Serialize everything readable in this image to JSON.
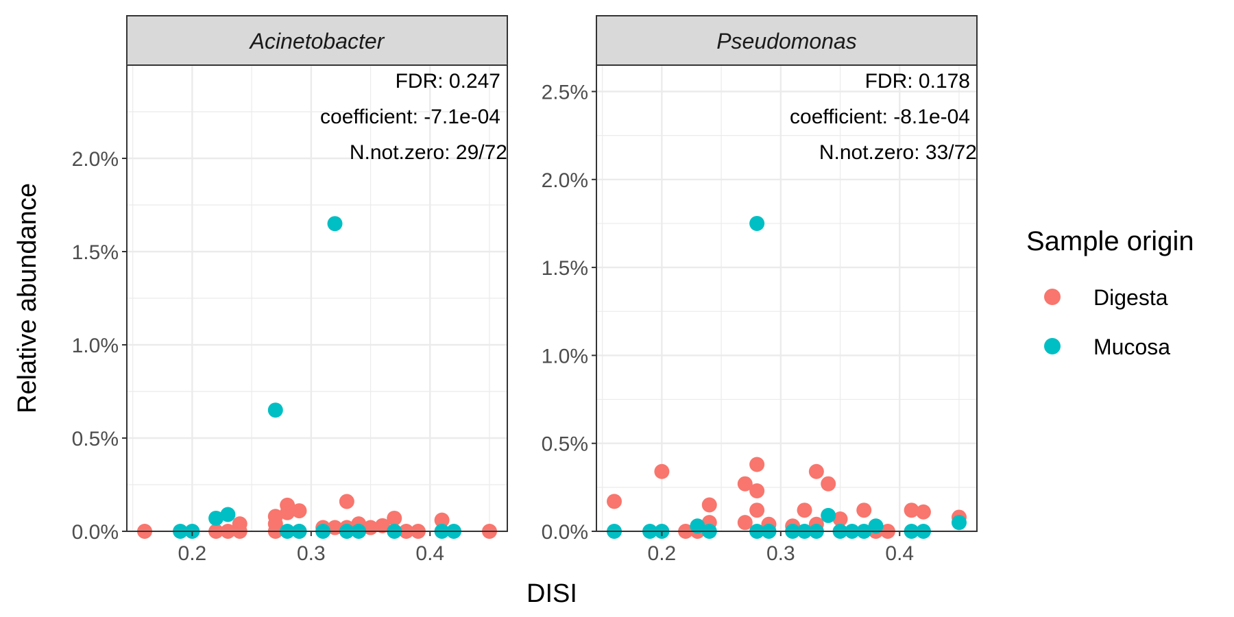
{
  "chart_data": {
    "type": "scatter",
    "xlabel": "DISI",
    "ylabel": "Relative abundance",
    "legend": {
      "title": "Sample origin",
      "position": "right",
      "entries": [
        {
          "name": "Digesta",
          "color": "#F8766D"
        },
        {
          "name": "Mucosa",
          "color": "#00BFC4"
        }
      ]
    },
    "grid": true,
    "x_ticks": [
      "0.2",
      "0.3",
      "0.4"
    ],
    "panels": [
      {
        "title": "Acinetobacter",
        "xlim": [
          0.145,
          0.465
        ],
        "ylim": [
          0,
          2.5
        ],
        "y_ticks": [
          "0.0%",
          "0.5%",
          "1.0%",
          "1.5%",
          "2.0%"
        ],
        "annotations": [
          "FDR: 0.247",
          "coefficient: -7.1e-04",
          "N.not.zero: 29/72"
        ],
        "series": [
          {
            "name": "Digesta",
            "points": [
              [
                0.16,
                0.0
              ],
              [
                0.22,
                0.0
              ],
              [
                0.23,
                0.0
              ],
              [
                0.24,
                0.04
              ],
              [
                0.24,
                0.0
              ],
              [
                0.27,
                0.08
              ],
              [
                0.27,
                0.04
              ],
              [
                0.27,
                0.0
              ],
              [
                0.28,
                0.14
              ],
              [
                0.28,
                0.1
              ],
              [
                0.29,
                0.11
              ],
              [
                0.29,
                0.0
              ],
              [
                0.31,
                0.02
              ],
              [
                0.32,
                0.02
              ],
              [
                0.33,
                0.16
              ],
              [
                0.33,
                0.02
              ],
              [
                0.34,
                0.04
              ],
              [
                0.35,
                0.02
              ],
              [
                0.36,
                0.03
              ],
              [
                0.37,
                0.07
              ],
              [
                0.38,
                0.0
              ],
              [
                0.39,
                0.0
              ],
              [
                0.41,
                0.06
              ],
              [
                0.45,
                0.0
              ]
            ]
          },
          {
            "name": "Mucosa",
            "points": [
              [
                0.19,
                0.0
              ],
              [
                0.2,
                0.0
              ],
              [
                0.22,
                0.07
              ],
              [
                0.23,
                0.09
              ],
              [
                0.27,
                0.65
              ],
              [
                0.28,
                0.0
              ],
              [
                0.29,
                0.0
              ],
              [
                0.31,
                0.0
              ],
              [
                0.32,
                1.65
              ],
              [
                0.33,
                0.0
              ],
              [
                0.34,
                0.0
              ],
              [
                0.37,
                0.0
              ],
              [
                0.41,
                0.0
              ],
              [
                0.42,
                0.0
              ]
            ]
          }
        ]
      },
      {
        "title": "Pseudomonas",
        "xlim": [
          0.145,
          0.465
        ],
        "ylim": [
          0,
          2.65
        ],
        "y_ticks": [
          "0.0%",
          "0.5%",
          "1.0%",
          "1.5%",
          "2.0%",
          "2.5%"
        ],
        "annotations": [
          "FDR: 0.178",
          "coefficient: -8.1e-04",
          "N.not.zero: 33/72"
        ],
        "series": [
          {
            "name": "Digesta",
            "points": [
              [
                0.16,
                0.17
              ],
              [
                0.2,
                0.34
              ],
              [
                0.22,
                0.0
              ],
              [
                0.23,
                0.0
              ],
              [
                0.24,
                0.15
              ],
              [
                0.24,
                0.05
              ],
              [
                0.27,
                0.27
              ],
              [
                0.27,
                0.05
              ],
              [
                0.28,
                0.38
              ],
              [
                0.28,
                0.23
              ],
              [
                0.28,
                0.12
              ],
              [
                0.29,
                0.04
              ],
              [
                0.31,
                0.03
              ],
              [
                0.32,
                0.12
              ],
              [
                0.33,
                0.34
              ],
              [
                0.33,
                0.04
              ],
              [
                0.34,
                0.27
              ],
              [
                0.35,
                0.07
              ],
              [
                0.37,
                0.12
              ],
              [
                0.38,
                0.0
              ],
              [
                0.39,
                0.0
              ],
              [
                0.41,
                0.12
              ],
              [
                0.42,
                0.11
              ],
              [
                0.45,
                0.08
              ]
            ]
          },
          {
            "name": "Mucosa",
            "points": [
              [
                0.16,
                0.0
              ],
              [
                0.19,
                0.0
              ],
              [
                0.2,
                0.0
              ],
              [
                0.23,
                0.03
              ],
              [
                0.24,
                0.0
              ],
              [
                0.28,
                1.75
              ],
              [
                0.28,
                0.0
              ],
              [
                0.29,
                0.0
              ],
              [
                0.31,
                0.0
              ],
              [
                0.32,
                0.0
              ],
              [
                0.33,
                0.0
              ],
              [
                0.34,
                0.09
              ],
              [
                0.35,
                0.0
              ],
              [
                0.36,
                0.0
              ],
              [
                0.37,
                0.0
              ],
              [
                0.38,
                0.03
              ],
              [
                0.41,
                0.0
              ],
              [
                0.42,
                0.0
              ],
              [
                0.45,
                0.05
              ]
            ]
          }
        ]
      }
    ]
  }
}
